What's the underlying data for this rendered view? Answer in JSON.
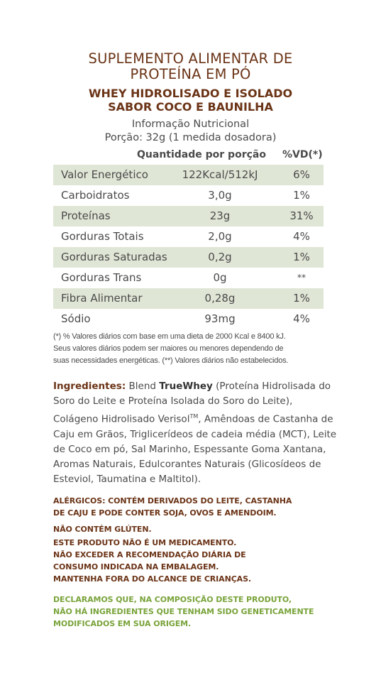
{
  "title": {
    "line1": "SUPLEMENTO ALIMENTAR DE",
    "line2": "PROTEÍNA EM PÓ"
  },
  "subtitle": {
    "line1": "WHEY HIDROLISADO E ISOLADO",
    "line2": "SABOR COCO E BAUNILHA"
  },
  "info": {
    "heading": "Informação Nutricional",
    "portion": "Porção: 32g (1 medida dosadora)"
  },
  "table": {
    "header_qty": "Quantidade por porção",
    "header_vd": "%VD(*)",
    "rows": [
      {
        "name": "Valor Energético",
        "qty": "122Kcal/512kJ",
        "vd": "6%"
      },
      {
        "name": "Carboidratos",
        "qty": "3,0g",
        "vd": "1%"
      },
      {
        "name": "Proteínas",
        "qty": "23g",
        "vd": "31%"
      },
      {
        "name": "Gorduras Totais",
        "qty": "2,0g",
        "vd": "4%"
      },
      {
        "name": "Gorduras Saturadas",
        "qty": "0,2g",
        "vd": "1%"
      },
      {
        "name": "Gorduras Trans",
        "qty": "0g",
        "vd": "**"
      },
      {
        "name": "Fibra Alimentar",
        "qty": "0,28g",
        "vd": "1%"
      },
      {
        "name": "Sódio",
        "qty": "93mg",
        "vd": "4%"
      }
    ]
  },
  "footnote": {
    "line1": "(*) % Valores diários com base em uma dieta de 2000 Kcal e 8400 kJ.",
    "line2": "Seus valores diários podem ser maiores ou menores dependendo de",
    "line3": "suas necessidades energéticas. (**) Valores diários não estabelecidos."
  },
  "ingredients": {
    "label": "Ingredientes:",
    "pre_brand": " Blend ",
    "brand": "TrueWhey",
    "text1": " (Proteína Hidrolisada do Soro do Leite e Proteína Isolada do Soro do Leite), Colágeno Hidrolisado Verisol",
    "tm": "TM",
    "text2": ", Amêndoas de Castanha de Caju em Grãos, Triglicerídeos de cadeia média (MCT), Leite de Coco em pó, Sal Marinho, Espessante Goma Xantana, Aromas Naturais, Edulcorantes Naturais (Glicosídeos de Esteviol, Taumatina e Maltitol)."
  },
  "allergens": {
    "line1": "ALÉRGICOS: CONTÉM DERIVADOS DO LEITE, CASTANHA",
    "line2": "DE CAJU E PODE CONTER SOJA, OVOS E AMENDOIM."
  },
  "gluten": "NÃO CONTÉM GLÚTEN.",
  "medical": {
    "line1": "ESTE PRODUTO NÃO É UM MEDICAMENTO.",
    "line2": "NÃO EXCEDER A RECOMENDAÇÃO DIÁRIA DE",
    "line3": "CONSUMO INDICADA NA EMBALAGEM.",
    "line4": "MANTENHA FORA DO ALCANCE DE CRIANÇAS."
  },
  "gmo": {
    "line1": "DECLARAMOS QUE, NA COMPOSIÇÃO DESTE PRODUTO,",
    "line2": "NÃO HÁ INGREDIENTES QUE TENHAM SIDO GENETICAMENTE",
    "line3": "MODIFICADOS EM SUA ORIGEM."
  },
  "colors": {
    "brown": "#6b3417",
    "green": "#79a33a",
    "row_shade": "#e0e6d6",
    "text": "#4a4a4a"
  }
}
